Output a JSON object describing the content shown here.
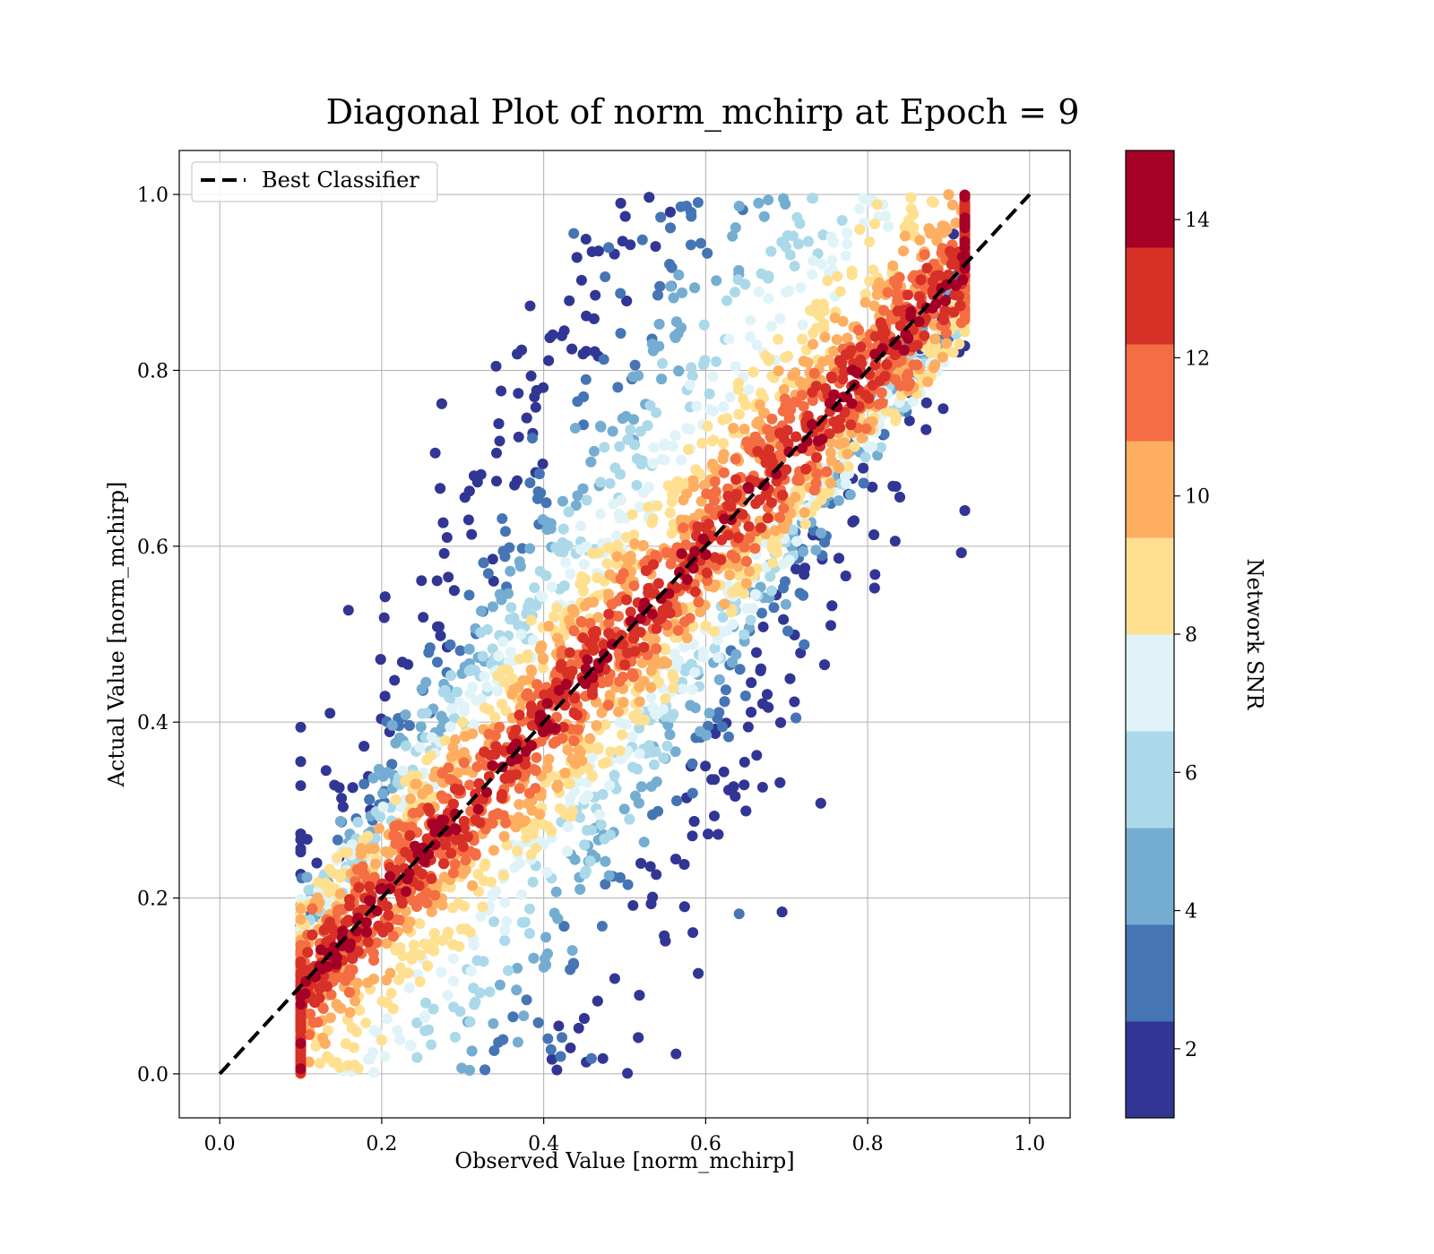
{
  "chart_data": {
    "type": "scatter",
    "title": "Diagonal Plot of norm_mchirp at Epoch = 9",
    "xlabel": "Observed Value [norm_mchirp]",
    "ylabel": "Actual Value [norm_mchirp]",
    "xlim": [
      -0.05,
      1.05
    ],
    "ylim": [
      -0.05,
      1.05
    ],
    "xticks": [
      "0.0",
      "0.2",
      "0.4",
      "0.6",
      "0.8",
      "1.0"
    ],
    "yticks": [
      "0.0",
      "0.2",
      "0.4",
      "0.6",
      "0.8",
      "1.0"
    ],
    "grid": true,
    "legend": {
      "position": "upper-left",
      "entries": [
        "Best Classifier"
      ]
    },
    "reference_line": {
      "name": "Best Classifier",
      "x": [
        0.0,
        1.0
      ],
      "y": [
        0.0,
        1.0
      ],
      "style": "dashed",
      "color": "#000000"
    },
    "colorbar": {
      "label": "Network SNR",
      "range": [
        1,
        15
      ],
      "ticks": [
        "2",
        "4",
        "6",
        "8",
        "10",
        "12",
        "14"
      ],
      "bins": 10,
      "colors": [
        "#313695",
        "#4575b4",
        "#74add1",
        "#abd9e9",
        "#e0f3f8",
        "#fee090",
        "#fdae61",
        "#f46d43",
        "#d73027",
        "#a50026"
      ]
    },
    "scatter_distribution": {
      "description_points": "dense band of points around the diagonal; high SNR (red) near diagonal, low SNR (blue) in upper-left and lower-right tails",
      "observed_range": [
        0.1,
        0.92
      ],
      "actual_range": [
        0.0,
        1.0
      ],
      "center_band_halfwidth": 0.12,
      "n_points": 6000
    }
  }
}
